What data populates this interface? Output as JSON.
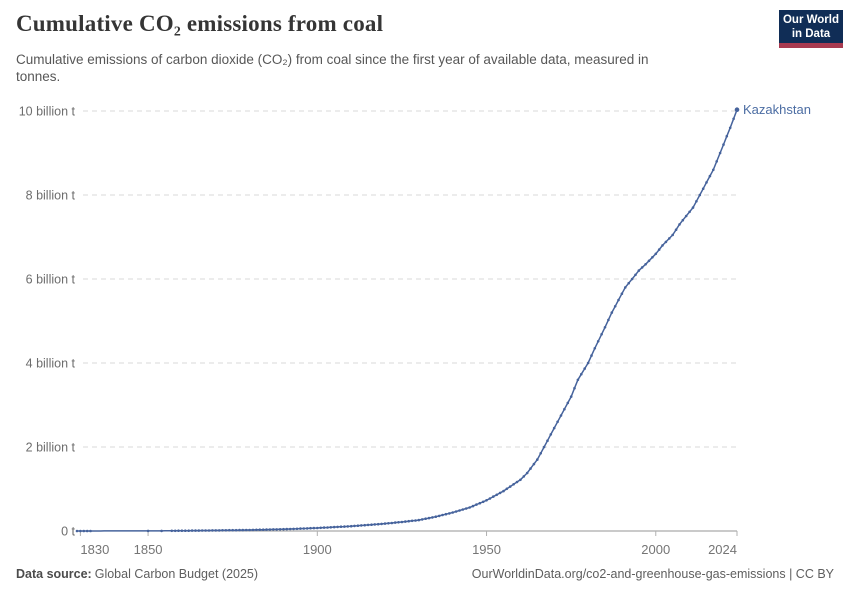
{
  "header": {
    "title": "Cumulative CO₂ emissions from coal",
    "subtitle": "Cumulative emissions of carbon dioxide (CO₂) from coal since the first year of available data, measured in\ntonnes.",
    "logo": {
      "line1": "Our World",
      "line2": "in Data",
      "bg_color": "#102d56",
      "accent_color": "#a83a50"
    }
  },
  "chart_data": {
    "type": "line",
    "title": "Cumulative CO₂ emissions from coal",
    "entity_label": "Kazakhstan",
    "unit": "tonnes",
    "line_color": "#46639c",
    "label_color": "#4c6da3",
    "grid": "horizontal-dashed",
    "x_range": [
      1829,
      2024
    ],
    "y_range": [
      0,
      10
    ],
    "x_ticks": [
      {
        "year": 1830,
        "label": "1830"
      },
      {
        "year": 1850,
        "label": "1850"
      },
      {
        "year": 1900,
        "label": "1900"
      },
      {
        "year": 1950,
        "label": "1950"
      },
      {
        "year": 2000,
        "label": "2000"
      },
      {
        "year": 2024,
        "label": "2024"
      }
    ],
    "y_ticks": [
      {
        "value": 0,
        "label": "0 t"
      },
      {
        "value": 2,
        "label": "2 billion t"
      },
      {
        "value": 4,
        "label": "4 billion t"
      },
      {
        "value": 6,
        "label": "6 billion t"
      },
      {
        "value": 8,
        "label": "8 billion t"
      },
      {
        "value": 10,
        "label": "10 billion t"
      }
    ],
    "series": [
      {
        "name": "Kazakhstan",
        "unit_scale": "billion tonnes",
        "marker_year_ranges": [
          [
            1829,
            1833
          ],
          [
            1850,
            1850
          ],
          [
            1854,
            1854
          ],
          [
            1857,
            2024
          ]
        ],
        "points": [
          [
            1829,
            0.0002
          ],
          [
            1833,
            0.001
          ],
          [
            1850,
            0.002
          ],
          [
            1854,
            0.0035
          ],
          [
            1857,
            0.005
          ],
          [
            1860,
            0.007
          ],
          [
            1865,
            0.01
          ],
          [
            1870,
            0.014
          ],
          [
            1875,
            0.019
          ],
          [
            1880,
            0.025
          ],
          [
            1885,
            0.033
          ],
          [
            1890,
            0.043
          ],
          [
            1895,
            0.056
          ],
          [
            1900,
            0.072
          ],
          [
            1905,
            0.092
          ],
          [
            1910,
            0.115
          ],
          [
            1915,
            0.145
          ],
          [
            1920,
            0.175
          ],
          [
            1925,
            0.215
          ],
          [
            1930,
            0.26
          ],
          [
            1935,
            0.34
          ],
          [
            1940,
            0.44
          ],
          [
            1945,
            0.56
          ],
          [
            1950,
            0.73
          ],
          [
            1955,
            0.95
          ],
          [
            1960,
            1.22
          ],
          [
            1962,
            1.38
          ],
          [
            1965,
            1.7
          ],
          [
            1967,
            2.0
          ],
          [
            1970,
            2.45
          ],
          [
            1972,
            2.75
          ],
          [
            1975,
            3.2
          ],
          [
            1977,
            3.6
          ],
          [
            1980,
            4.0
          ],
          [
            1982,
            4.35
          ],
          [
            1985,
            4.85
          ],
          [
            1987,
            5.2
          ],
          [
            1990,
            5.65
          ],
          [
            1991,
            5.8
          ],
          [
            1993,
            6.0
          ],
          [
            1995,
            6.2
          ],
          [
            1997,
            6.35
          ],
          [
            2000,
            6.6
          ],
          [
            2002,
            6.8
          ],
          [
            2005,
            7.05
          ],
          [
            2007,
            7.3
          ],
          [
            2010,
            7.6
          ],
          [
            2011,
            7.7
          ],
          [
            2013,
            8.0
          ],
          [
            2015,
            8.3
          ],
          [
            2017,
            8.6
          ],
          [
            2020,
            9.2
          ],
          [
            2022,
            9.6
          ],
          [
            2024,
            10.03
          ]
        ]
      }
    ]
  },
  "footer": {
    "source_label": "Data source:",
    "source": "Global Carbon Budget (2025)",
    "attribution": "OurWorldinData.org/co2-and-greenhouse-gas-emissions | CC BY"
  }
}
